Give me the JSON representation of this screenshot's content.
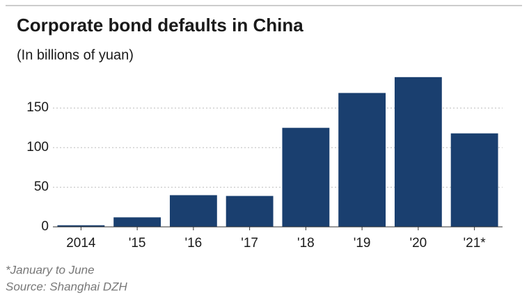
{
  "chart_data": {
    "type": "bar",
    "title": "Corporate bond defaults in China",
    "subtitle": "(In billions of yuan)",
    "categories": [
      "2014",
      "'15",
      "'16",
      "'17",
      "'18",
      "'19",
      "'20",
      "'21*"
    ],
    "values": [
      2,
      12,
      40,
      39,
      125,
      169,
      189,
      118
    ],
    "color": "#1a3f6f",
    "ylim": [
      0,
      195
    ],
    "yticks": [
      0,
      50,
      100,
      150
    ],
    "grid": true,
    "notes": [
      "*January to June",
      "Source: Shanghai DZH"
    ]
  }
}
